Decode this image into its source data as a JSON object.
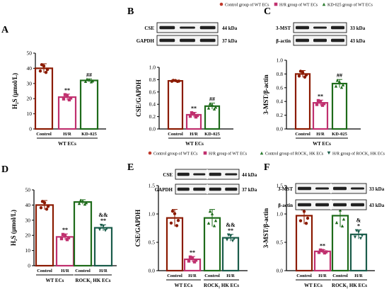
{
  "colors": {
    "control": "#8b1a00",
    "hr": "#c0306e",
    "kd": "#1e6b1a",
    "rock_hr": "#1a5c4a",
    "rock_ctrl": "#3d7a10"
  },
  "legends": {
    "top": [
      {
        "label": "Control group of WT ECs",
        "marker": "circle",
        "color": "#c0392b"
      },
      {
        "label": "H/R group of WT ECs",
        "marker": "square",
        "color": "#c0306e"
      },
      {
        "label": "KD-025 group of WT ECs",
        "marker": "triangle-up",
        "color": "#2e7d32"
      }
    ],
    "bottom": [
      {
        "label": "Control group of WT ECs",
        "marker": "circle",
        "color": "#c0392b"
      },
      {
        "label": "H/R group of WT ECs",
        "marker": "square",
        "color": "#c0306e"
      },
      {
        "label": "Control group of ROCK₂ HK ECs",
        "marker": "triangle-up",
        "color": "#2e7d32"
      },
      {
        "label": "H/R group of ROCK₂ HK ECs",
        "marker": "triangle-down",
        "color": "#1a5c4a"
      }
    ]
  },
  "blots": {
    "B": {
      "rows": [
        {
          "name": "CSE",
          "kda": "44 kDa"
        },
        {
          "name": "GAPDH",
          "kda": "37 kDa"
        }
      ]
    },
    "C": {
      "rows": [
        {
          "name": "3-MST",
          "kda": "33 kDa"
        },
        {
          "name": "β-actin",
          "kda": "43 kDa"
        }
      ]
    },
    "E": {
      "rows": [
        {
          "name": "CSE",
          "kda": "44 kDa"
        },
        {
          "name": "GAPDH",
          "kda": "37 kDa"
        }
      ]
    },
    "F": {
      "rows": [
        {
          "name": "3-MST",
          "kda": "33 kDa"
        },
        {
          "name": "β-actin",
          "kda": "43 kDa"
        }
      ]
    }
  },
  "chart_data": [
    {
      "panel": "A",
      "type": "bar",
      "ylabel": "H₂S (μmol/L)",
      "ylim": [
        0,
        50
      ],
      "ticks": [
        0,
        10,
        20,
        30,
        40,
        50
      ],
      "categories": [
        "Control",
        "H/R",
        "KD-025"
      ],
      "group_labels": [
        "WT ECs"
      ],
      "values": [
        40,
        21,
        32
      ],
      "errors": [
        3,
        2,
        1
      ],
      "sig": [
        "",
        "**",
        "##"
      ],
      "sig2": [
        "",
        "",
        ""
      ]
    },
    {
      "panel": "B",
      "type": "bar",
      "ylabel": "CSE/GAPDH",
      "ylim": [
        0,
        1.0
      ],
      "ticks": [
        0.0,
        0.2,
        0.4,
        0.6,
        0.8,
        1.0
      ],
      "categories": [
        "Control",
        "H/R",
        "KD-025"
      ],
      "group_labels": [
        "WT ECs"
      ],
      "values": [
        0.78,
        0.23,
        0.37
      ],
      "errors": [
        0.01,
        0.04,
        0.05
      ],
      "sig": [
        "",
        "**",
        "##"
      ],
      "sig2": [
        "",
        "",
        ""
      ]
    },
    {
      "panel": "C",
      "type": "bar",
      "ylabel": "3-MST/β-actin",
      "ylim": [
        0,
        1.0
      ],
      "ticks": [
        0.0,
        0.2,
        0.4,
        0.6,
        0.8,
        1.0
      ],
      "categories": [
        "Control",
        "H/R",
        "KD-025"
      ],
      "group_labels": [
        "WT ECs"
      ],
      "values": [
        0.8,
        0.38,
        0.66
      ],
      "errors": [
        0.05,
        0.04,
        0.06
      ],
      "sig": [
        "",
        "**",
        "##"
      ],
      "sig2": [
        "",
        "",
        ""
      ]
    },
    {
      "panel": "D",
      "type": "bar",
      "ylabel": "H₂S (μmol/L)",
      "ylim": [
        0,
        50
      ],
      "ticks": [
        0,
        10,
        20,
        30,
        40,
        50
      ],
      "categories": [
        "Control",
        "H/R",
        "Control",
        "H/R"
      ],
      "group_labels": [
        "WT ECs",
        "ROCK₂ HK ECs"
      ],
      "values": [
        40,
        19,
        42,
        25
      ],
      "errors": [
        3,
        2,
        1.5,
        2
      ],
      "sig": [
        "",
        "**",
        "",
        "**"
      ],
      "sig2": [
        "",
        "",
        "",
        "&&"
      ]
    },
    {
      "panel": "E",
      "type": "bar",
      "ylabel": "CSE/GAPDH",
      "ylim": [
        0,
        1.5
      ],
      "ticks": [
        0.0,
        0.5,
        1.0,
        1.5
      ],
      "categories": [
        "Control",
        "H/R",
        "Control",
        "H/R"
      ],
      "group_labels": [
        "WT ECs",
        "ROCK₂ HK ECs"
      ],
      "values": [
        0.93,
        0.2,
        0.93,
        0.58
      ],
      "errors": [
        0.15,
        0.05,
        0.15,
        0.06
      ],
      "sig": [
        "",
        "**",
        "",
        "**"
      ],
      "sig2": [
        "",
        "",
        "",
        "&&"
      ]
    },
    {
      "panel": "F",
      "type": "bar",
      "ylabel": "3-MST/β-actin",
      "ylim": [
        0,
        1.5
      ],
      "ticks": [
        0.0,
        0.5,
        1.0,
        1.5
      ],
      "categories": [
        "Control",
        "H/R",
        "Control",
        "H/R"
      ],
      "group_labels": [
        "WT ECs",
        "ROCK₂ HK ECs"
      ],
      "values": [
        0.97,
        0.34,
        0.97,
        0.64
      ],
      "errors": [
        0.15,
        0.03,
        0.2,
        0.08
      ],
      "sig": [
        "",
        "**",
        "",
        "*"
      ],
      "sig2": [
        "",
        "",
        "",
        "&"
      ]
    }
  ]
}
